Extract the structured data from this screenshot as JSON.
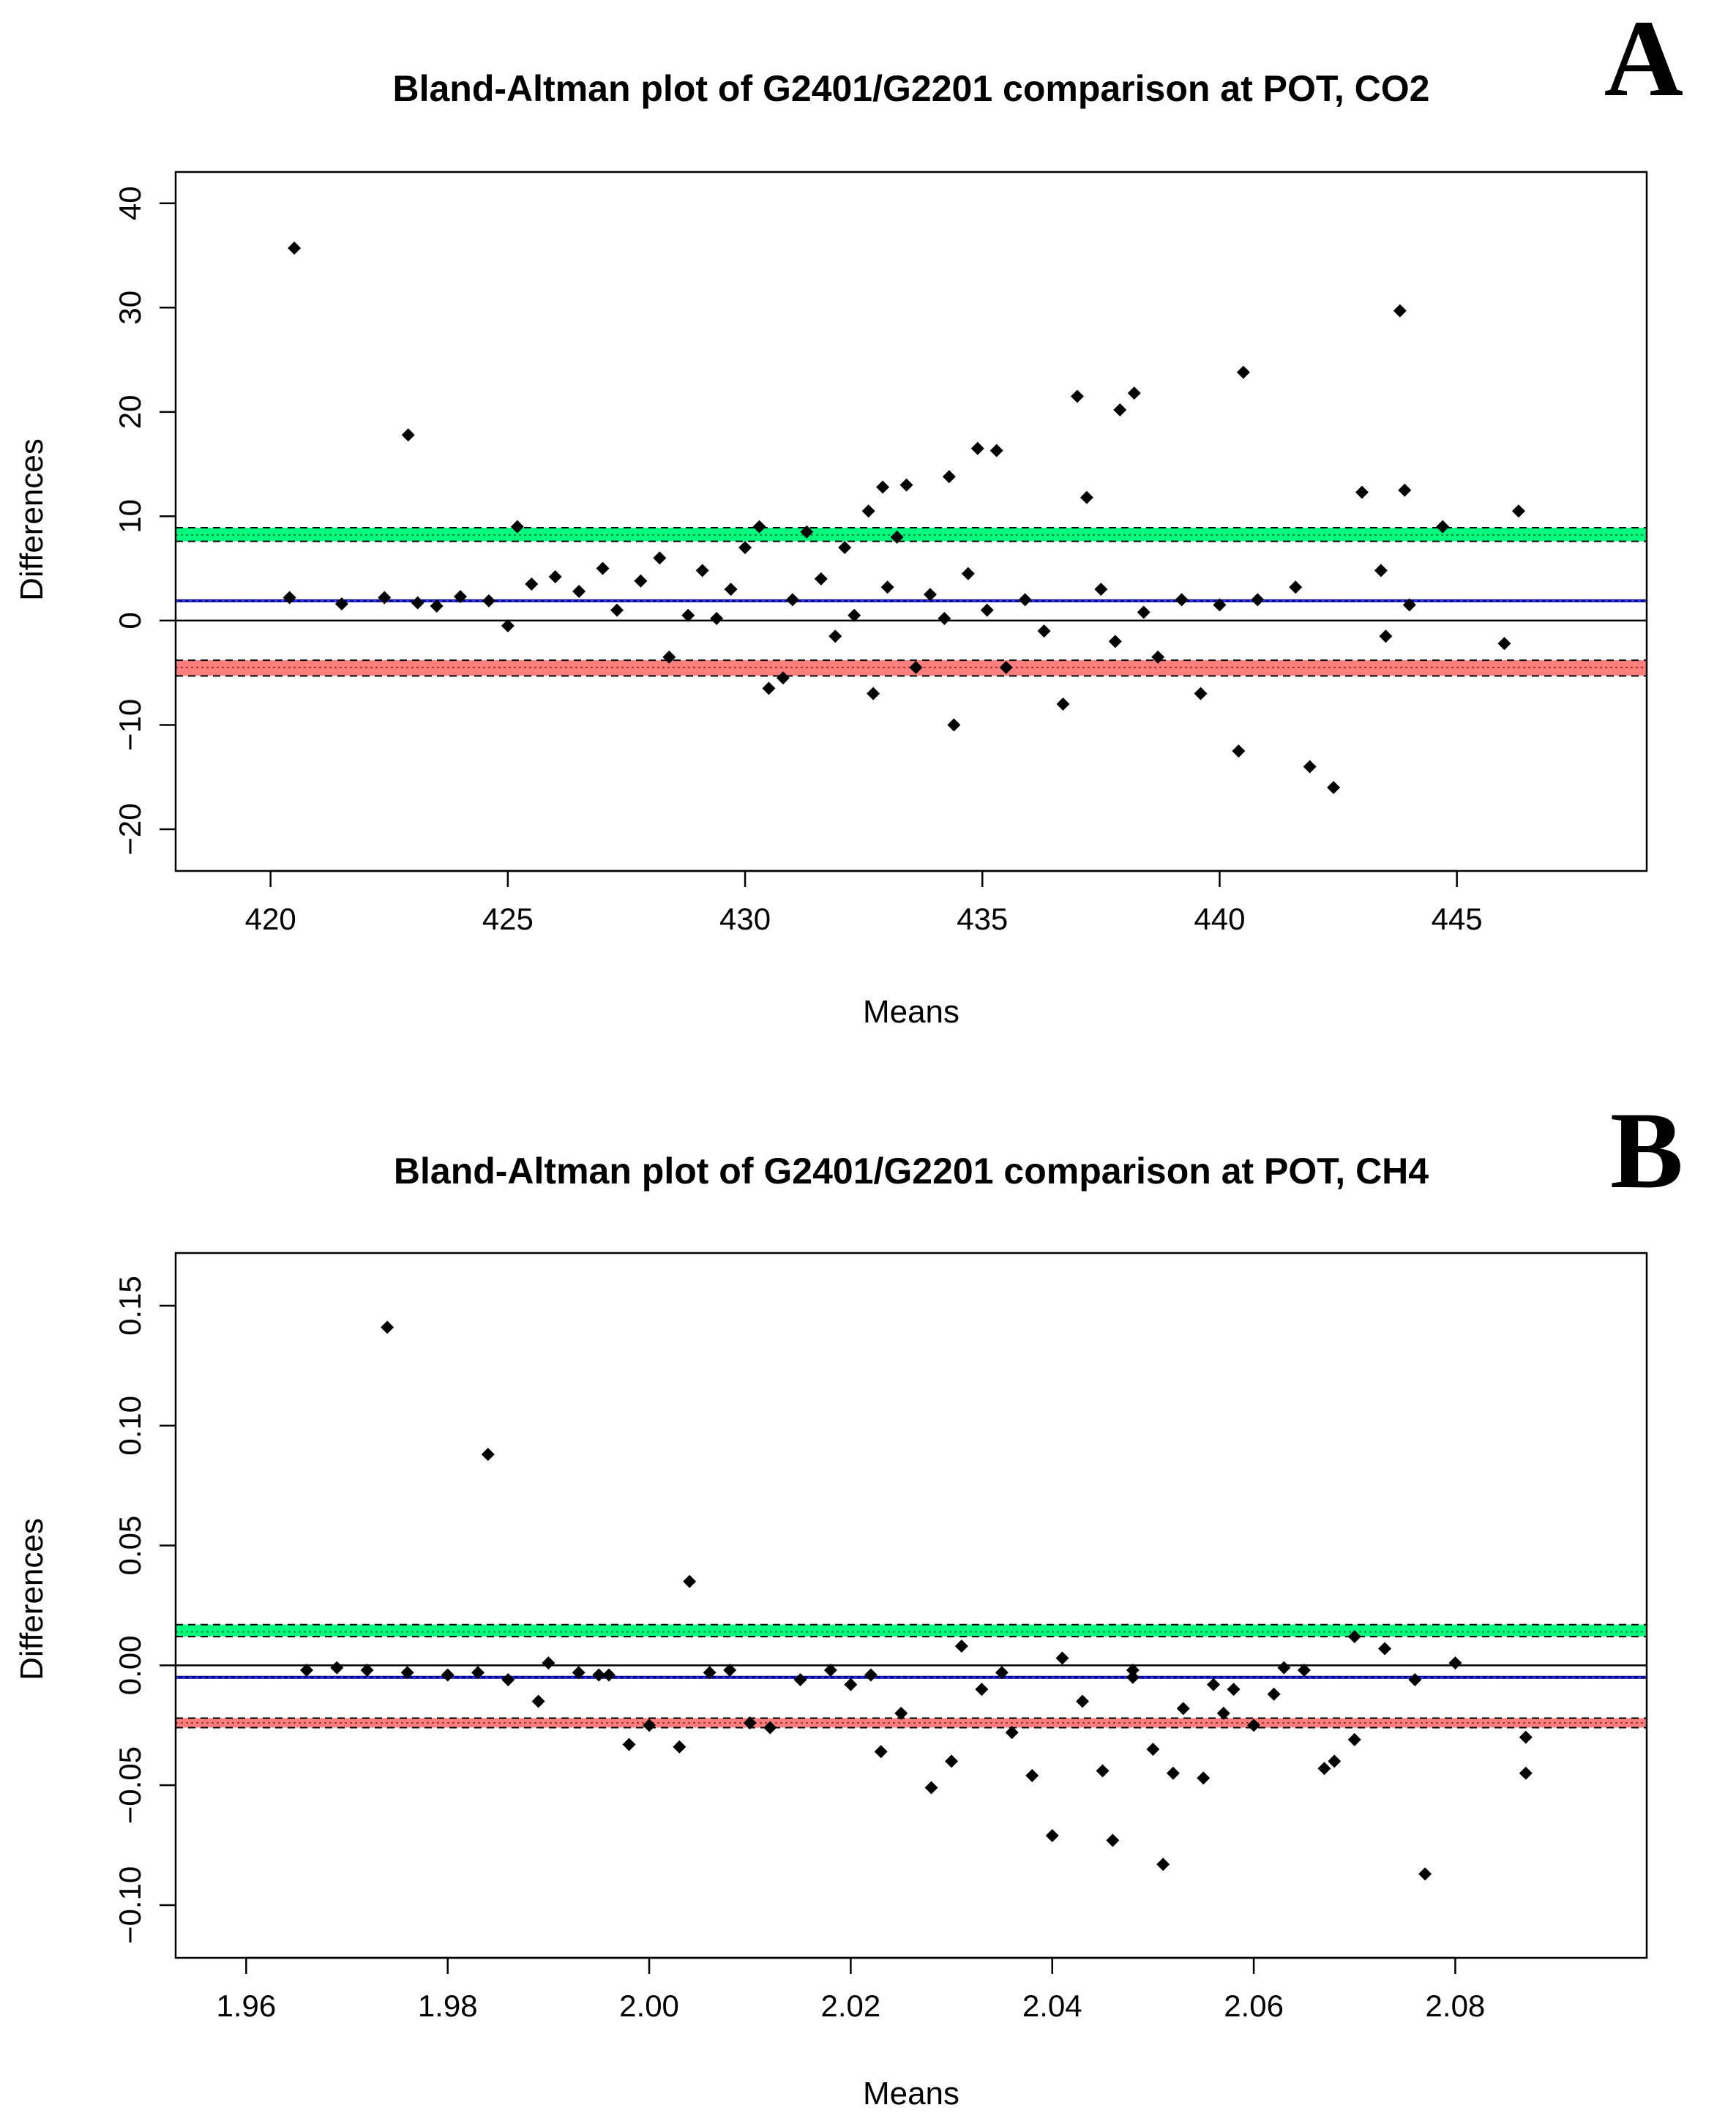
{
  "chart_data": [
    {
      "panel_label": "A",
      "type": "scatter",
      "title": "Bland-Altman plot of G2401/G2201 comparison at POT, CO2",
      "xlabel": "Means",
      "ylabel": "Differences",
      "xlim": [
        418,
        449
      ],
      "ylim": [
        -24,
        43
      ],
      "xticks": [
        420,
        425,
        430,
        435,
        440,
        445
      ],
      "yticks": [
        -20,
        -10,
        0,
        10,
        20,
        30,
        40
      ],
      "xtick_labels": [
        "420",
        "425",
        "430",
        "435",
        "440",
        "445"
      ],
      "ytick_labels": [
        "−20",
        "−10",
        "0",
        "10",
        "20",
        "30",
        "40"
      ],
      "reference_lines": {
        "zero": 0,
        "mean_difference": 1.9,
        "upper_limit": 8.2,
        "upper_ci": [
          7.6,
          8.9
        ],
        "lower_limit": -4.5,
        "lower_ci": [
          -5.3,
          -3.8
        ]
      },
      "colors": {
        "points": "#000000",
        "mean": "#00008b",
        "upper_band": "#00ff7f",
        "lower_band": "#ff7f7f"
      },
      "points": [
        [
          420.5,
          35.7
        ],
        [
          422.9,
          17.8
        ],
        [
          425.2,
          9.0
        ],
        [
          420.4,
          2.2
        ],
        [
          421.5,
          1.6
        ],
        [
          422.4,
          2.2
        ],
        [
          423.1,
          1.7
        ],
        [
          423.5,
          1.4
        ],
        [
          424.0,
          2.3
        ],
        [
          424.6,
          1.9
        ],
        [
          425.0,
          -0.5
        ],
        [
          425.5,
          3.5
        ],
        [
          426.0,
          4.2
        ],
        [
          426.5,
          2.8
        ],
        [
          427.0,
          5.0
        ],
        [
          427.3,
          1.0
        ],
        [
          427.8,
          3.8
        ],
        [
          428.2,
          6.0
        ],
        [
          428.4,
          -3.5
        ],
        [
          428.8,
          0.5
        ],
        [
          429.1,
          4.8
        ],
        [
          429.4,
          0.2
        ],
        [
          429.7,
          3.0
        ],
        [
          430.0,
          7.0
        ],
        [
          430.3,
          9.0
        ],
        [
          430.5,
          -6.5
        ],
        [
          430.8,
          -5.5
        ],
        [
          431.0,
          2.0
        ],
        [
          431.3,
          8.5
        ],
        [
          431.6,
          4.0
        ],
        [
          431.9,
          -1.5
        ],
        [
          432.1,
          7.0
        ],
        [
          432.3,
          0.5
        ],
        [
          432.6,
          10.5
        ],
        [
          432.7,
          -7.0
        ],
        [
          432.9,
          12.8
        ],
        [
          433.0,
          3.2
        ],
        [
          433.2,
          8.0
        ],
        [
          433.4,
          13.0
        ],
        [
          433.6,
          -4.5
        ],
        [
          433.9,
          2.5
        ],
        [
          434.2,
          0.2
        ],
        [
          434.3,
          13.8
        ],
        [
          434.4,
          -10.0
        ],
        [
          434.7,
          4.5
        ],
        [
          434.9,
          16.5
        ],
        [
          435.1,
          1.0
        ],
        [
          435.3,
          16.3
        ],
        [
          435.5,
          -4.5
        ],
        [
          435.9,
          2.0
        ],
        [
          436.3,
          -1.0
        ],
        [
          436.7,
          -8.0
        ],
        [
          437.0,
          21.5
        ],
        [
          437.2,
          11.8
        ],
        [
          437.5,
          3.0
        ],
        [
          437.8,
          -2.0
        ],
        [
          437.9,
          20.2
        ],
        [
          438.2,
          21.8
        ],
        [
          438.4,
          0.8
        ],
        [
          438.7,
          -3.5
        ],
        [
          439.2,
          2.0
        ],
        [
          439.6,
          -7.0
        ],
        [
          440.0,
          1.5
        ],
        [
          440.5,
          23.8
        ],
        [
          440.4,
          -12.5
        ],
        [
          440.8,
          2.0
        ],
        [
          441.6,
          3.2
        ],
        [
          441.9,
          -14.0
        ],
        [
          442.4,
          -16.0
        ],
        [
          443.0,
          12.3
        ],
        [
          443.4,
          4.8
        ],
        [
          443.5,
          -1.5
        ],
        [
          443.8,
          29.7
        ],
        [
          443.9,
          12.5
        ],
        [
          444.0,
          1.5
        ],
        [
          444.7,
          9.0
        ],
        [
          446.0,
          -2.2
        ],
        [
          446.3,
          10.5
        ]
      ]
    },
    {
      "panel_label": "B",
      "type": "scatter",
      "title": "Bland-Altman plot of G2401/G2201 comparison at POT, CH4",
      "xlabel": "Means",
      "ylabel": "Differences",
      "xlim": [
        1.953,
        2.099
      ],
      "ylim": [
        -0.122,
        0.172
      ],
      "xticks": [
        1.96,
        1.98,
        2.0,
        2.02,
        2.04,
        2.06,
        2.08
      ],
      "yticks": [
        -0.1,
        -0.05,
        0.0,
        0.05,
        0.1,
        0.15
      ],
      "xtick_labels": [
        "1.96",
        "1.98",
        "2.00",
        "2.02",
        "2.04",
        "2.06",
        "2.08"
      ],
      "ytick_labels": [
        "−0.10",
        "−0.05",
        "0.00",
        "0.05",
        "0.10",
        "0.15"
      ],
      "reference_lines": {
        "zero": 0,
        "mean_difference": -0.005,
        "upper_limit": 0.014,
        "upper_ci": [
          0.012,
          0.017
        ],
        "lower_limit": -0.024,
        "lower_ci": [
          -0.026,
          -0.022
        ]
      },
      "colors": {
        "points": "#000000",
        "mean": "#00008b",
        "upper_band": "#00ff7f",
        "lower_band": "#ff7f7f"
      },
      "points": [
        [
          1.974,
          0.141
        ],
        [
          1.984,
          0.088
        ],
        [
          2.004,
          0.035
        ],
        [
          1.966,
          -0.002
        ],
        [
          1.969,
          -0.001
        ],
        [
          1.972,
          -0.002
        ],
        [
          1.976,
          -0.003
        ],
        [
          1.98,
          -0.004
        ],
        [
          1.983,
          -0.003
        ],
        [
          1.986,
          -0.006
        ],
        [
          1.989,
          -0.015
        ],
        [
          1.99,
          0.001
        ],
        [
          1.993,
          -0.003
        ],
        [
          1.996,
          -0.004
        ],
        [
          1.998,
          -0.033
        ],
        [
          2.0,
          -0.025
        ],
        [
          2.003,
          -0.034
        ],
        [
          2.006,
          -0.003
        ],
        [
          2.01,
          -0.024
        ],
        [
          2.012,
          -0.026
        ],
        [
          2.015,
          -0.006
        ],
        [
          2.018,
          -0.002
        ],
        [
          2.02,
          -0.008
        ],
        [
          2.023,
          -0.036
        ],
        [
          2.025,
          -0.02
        ],
        [
          2.028,
          -0.051
        ],
        [
          2.03,
          -0.04
        ],
        [
          2.031,
          0.008
        ],
        [
          2.033,
          -0.01
        ],
        [
          2.036,
          -0.028
        ],
        [
          2.038,
          -0.046
        ],
        [
          2.04,
          -0.071
        ],
        [
          2.041,
          0.003
        ],
        [
          2.043,
          -0.015
        ],
        [
          2.045,
          -0.044
        ],
        [
          2.046,
          -0.073
        ],
        [
          2.048,
          -0.005
        ],
        [
          2.05,
          -0.035
        ],
        [
          2.051,
          -0.083
        ],
        [
          2.052,
          -0.045
        ],
        [
          2.055,
          -0.047
        ],
        [
          2.057,
          -0.02
        ],
        [
          2.058,
          -0.01
        ],
        [
          2.06,
          -0.025
        ],
        [
          2.063,
          -0.001
        ],
        [
          2.065,
          -0.002
        ],
        [
          2.067,
          -0.043
        ],
        [
          2.068,
          -0.04
        ],
        [
          2.07,
          -0.031
        ],
        [
          2.07,
          0.012
        ],
        [
          2.073,
          0.007
        ],
        [
          2.076,
          -0.006
        ],
        [
          2.077,
          -0.087
        ],
        [
          2.08,
          0.001
        ],
        [
          2.087,
          -0.03
        ],
        [
          2.087,
          -0.045
        ],
        [
          1.995,
          -0.004
        ],
        [
          2.008,
          -0.002
        ],
        [
          2.022,
          -0.004
        ],
        [
          2.035,
          -0.003
        ],
        [
          2.048,
          -0.002
        ],
        [
          2.056,
          -0.008
        ],
        [
          2.062,
          -0.012
        ],
        [
          2.053,
          -0.018
        ]
      ]
    }
  ]
}
